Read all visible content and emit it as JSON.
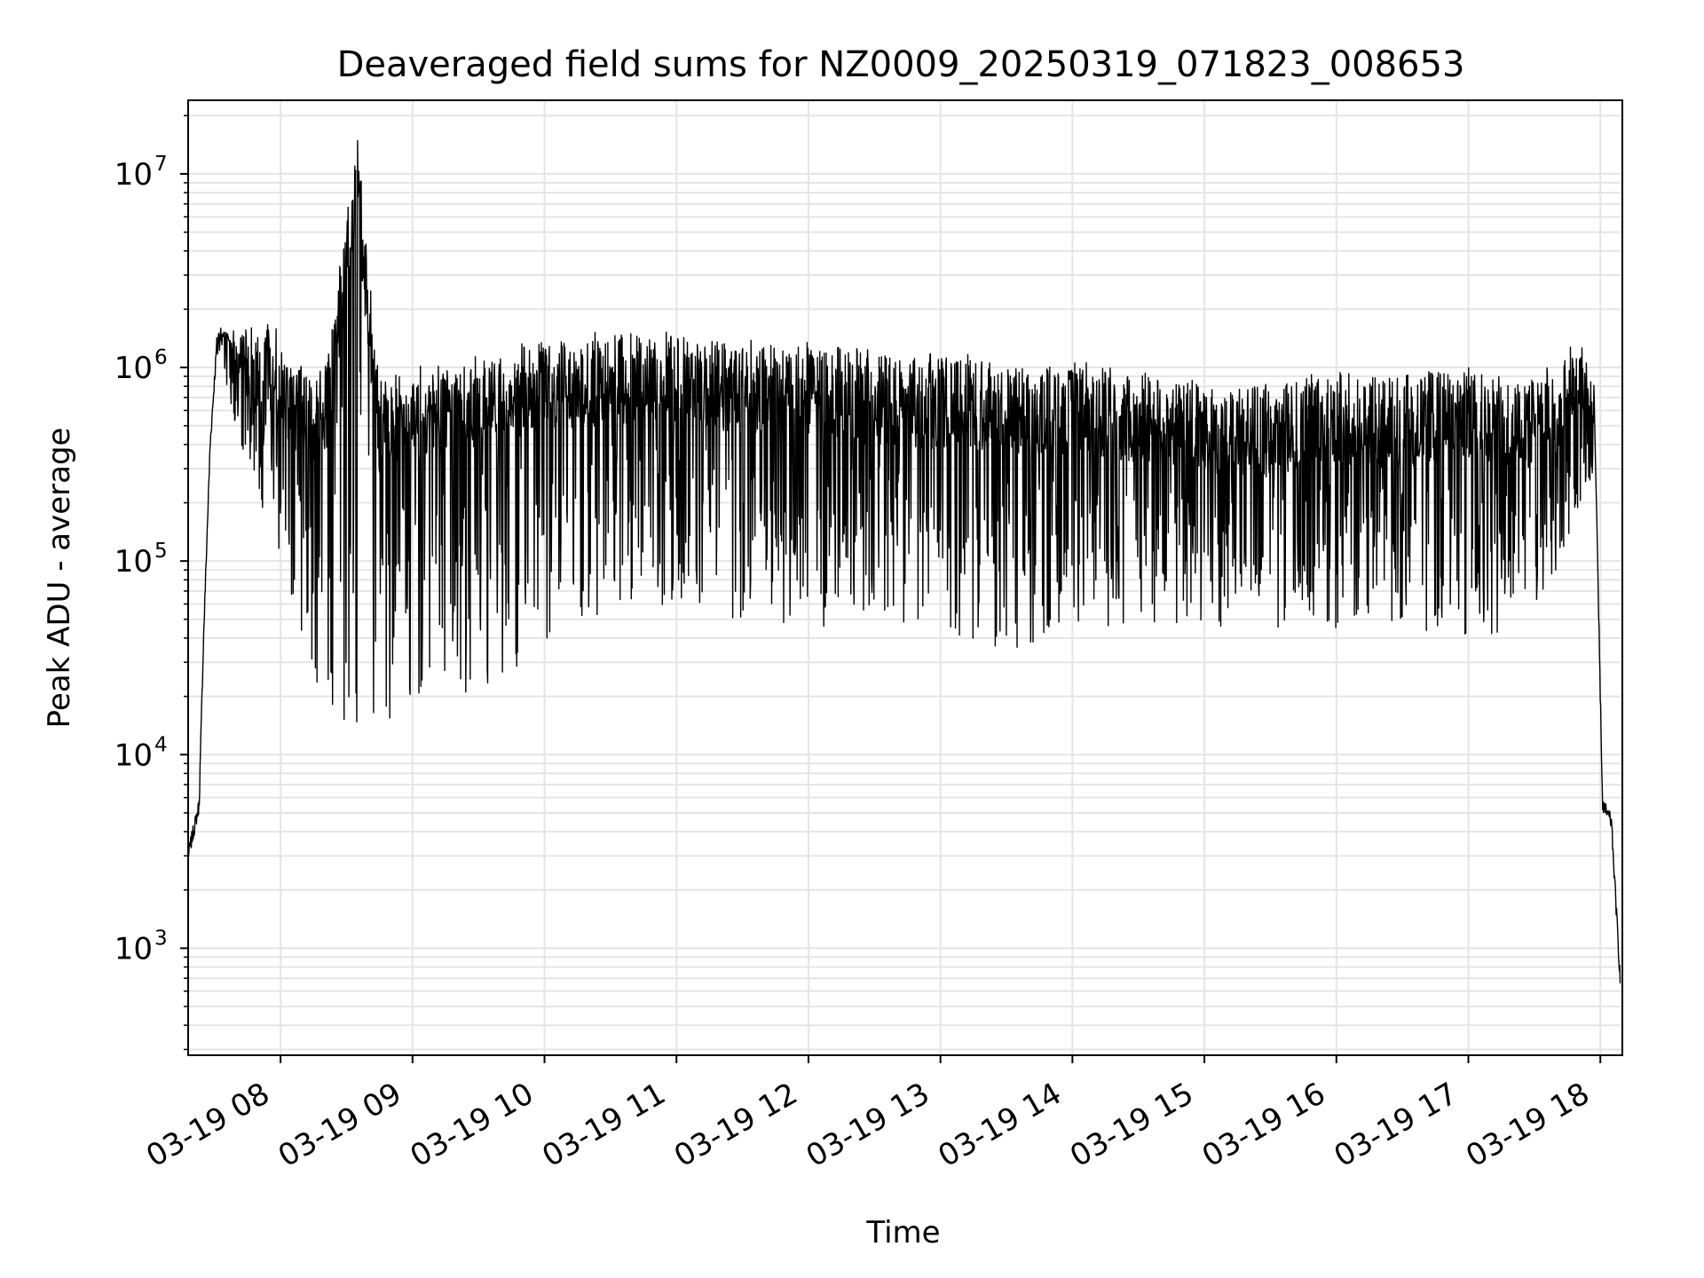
{
  "chart_data": {
    "type": "line",
    "title": "Deaveraged field sums for NZ0009_20250319_071823_008653",
    "xlabel": "Time",
    "ylabel": "Peak ADU - average",
    "yscale": "log",
    "ylim": [
      280,
      24000000
    ],
    "xlim": [
      "2025-03-19 07:18:00",
      "2025-03-19 18:10:00"
    ],
    "grid": true,
    "line_color": "#000000",
    "grid_color": "#e5e5e5",
    "x_ticks": [
      {
        "t": "2025-03-19 08:00",
        "label": "03-19 08"
      },
      {
        "t": "2025-03-19 09:00",
        "label": "03-19 09"
      },
      {
        "t": "2025-03-19 10:00",
        "label": "03-19 10"
      },
      {
        "t": "2025-03-19 11:00",
        "label": "03-19 11"
      },
      {
        "t": "2025-03-19 12:00",
        "label": "03-19 12"
      },
      {
        "t": "2025-03-19 13:00",
        "label": "03-19 13"
      },
      {
        "t": "2025-03-19 14:00",
        "label": "03-19 14"
      },
      {
        "t": "2025-03-19 15:00",
        "label": "03-19 15"
      },
      {
        "t": "2025-03-19 16:00",
        "label": "03-19 16"
      },
      {
        "t": "2025-03-19 17:00",
        "label": "03-19 17"
      },
      {
        "t": "2025-03-19 18:00",
        "label": "03-19 18"
      }
    ],
    "y_ticks": [
      {
        "v": 1000,
        "base": "10",
        "exp": "3"
      },
      {
        "v": 10000,
        "base": "10",
        "exp": "4"
      },
      {
        "v": 100000,
        "base": "10",
        "exp": "5"
      },
      {
        "v": 1000000,
        "base": "10",
        "exp": "6"
      },
      {
        "v": 10000000,
        "base": "10",
        "exp": "7"
      }
    ],
    "series": [
      {
        "description_points": "key features of the trace: upper envelope and lower envelope",
        "upper": [
          [
            "2025-03-19 07:18",
            3000
          ],
          [
            "2025-03-19 07:23",
            5500
          ],
          [
            "2025-03-19 07:25",
            40000
          ],
          [
            "2025-03-19 07:28",
            400000
          ],
          [
            "2025-03-19 07:31",
            1300000
          ],
          [
            "2025-03-19 07:35",
            1500000
          ],
          [
            "2025-03-19 07:45",
            1700000
          ],
          [
            "2025-03-19 07:55",
            1900000
          ],
          [
            "2025-03-19 08:05",
            1200000
          ],
          [
            "2025-03-19 08:20",
            1000000
          ],
          [
            "2025-03-19 08:35",
            15000000
          ],
          [
            "2025-03-19 08:45",
            900000
          ],
          [
            "2025-03-19 09:00",
            1000000
          ],
          [
            "2025-03-19 09:20",
            1100000
          ],
          [
            "2025-03-19 09:40",
            1300000
          ],
          [
            "2025-03-19 10:00",
            1500000
          ],
          [
            "2025-03-19 10:30",
            1600000
          ],
          [
            "2025-03-19 11:00",
            1550000
          ],
          [
            "2025-03-19 11:30",
            1450000
          ],
          [
            "2025-03-19 12:00",
            1350000
          ],
          [
            "2025-03-19 12:30",
            1250000
          ],
          [
            "2025-03-19 13:00",
            1200000
          ],
          [
            "2025-03-19 13:30",
            1150000
          ],
          [
            "2025-03-19 14:00",
            1100000
          ],
          [
            "2025-03-19 14:30",
            1000000
          ],
          [
            "2025-03-19 15:00",
            900000
          ],
          [
            "2025-03-19 15:30",
            850000
          ],
          [
            "2025-03-19 16:00",
            1000000
          ],
          [
            "2025-03-19 16:30",
            950000
          ],
          [
            "2025-03-19 17:00",
            1050000
          ],
          [
            "2025-03-19 17:30",
            900000
          ],
          [
            "2025-03-19 17:52",
            1500000
          ],
          [
            "2025-03-19 17:57",
            900000
          ],
          [
            "2025-03-19 18:01",
            5500
          ],
          [
            "2025-03-19 18:05",
            4500
          ],
          [
            "2025-03-19 18:09",
            700
          ]
        ],
        "lower": [
          [
            "2025-03-19 07:35",
            800000
          ],
          [
            "2025-03-19 07:45",
            300000
          ],
          [
            "2025-03-19 08:00",
            100000
          ],
          [
            "2025-03-19 08:15",
            18000
          ],
          [
            "2025-03-19 08:30",
            15000
          ],
          [
            "2025-03-19 08:50",
            14000
          ],
          [
            "2025-03-19 09:10",
            18000
          ],
          [
            "2025-03-19 09:30",
            20000
          ],
          [
            "2025-03-19 09:50",
            30000
          ],
          [
            "2025-03-19 10:10",
            40000
          ],
          [
            "2025-03-19 10:30",
            50000
          ],
          [
            "2025-03-19 11:00",
            55000
          ],
          [
            "2025-03-19 12:00",
            45000
          ],
          [
            "2025-03-19 13:00",
            45000
          ],
          [
            "2025-03-19 13:30",
            33000
          ],
          [
            "2025-03-19 14:00",
            45000
          ],
          [
            "2025-03-19 15:00",
            45000
          ],
          [
            "2025-03-19 16:00",
            45000
          ],
          [
            "2025-03-19 17:00",
            40000
          ],
          [
            "2025-03-19 17:30",
            45000
          ],
          [
            "2025-03-19 17:52",
            200000
          ]
        ]
      }
    ]
  }
}
